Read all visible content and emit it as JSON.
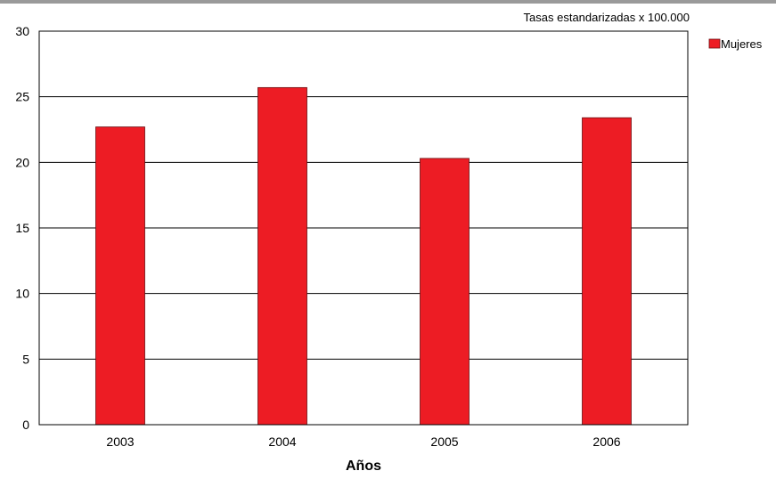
{
  "chart_data": {
    "type": "bar",
    "title": "",
    "subtitle": "Tasas estandarizadas x 100.000",
    "xlabel": "Años",
    "ylabel": "",
    "categories": [
      "2003",
      "2004",
      "2005",
      "2006"
    ],
    "series": [
      {
        "name": "Mujeres",
        "values": [
          22.7,
          25.7,
          20.3,
          23.4
        ]
      }
    ],
    "ylim": [
      0,
      30
    ],
    "yticks": [
      0,
      5,
      10,
      15,
      20,
      25,
      30
    ],
    "grid": true,
    "legend": "top-right",
    "colors": {
      "bar": "#ed1c24",
      "bar_edge": "#6b0f12",
      "grid": "#000000",
      "top_rule": "#999999"
    }
  }
}
